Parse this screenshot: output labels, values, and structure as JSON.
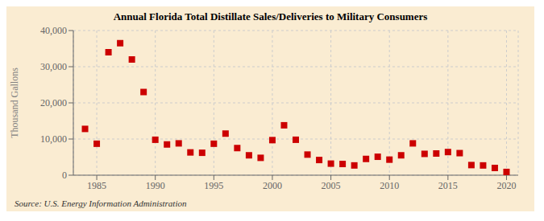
{
  "chart_data": {
    "type": "scatter",
    "title": "Annual Florida Total Distillate Sales/Deliveries to Military Consumers",
    "ylabel": "Thousand Gallons",
    "annotation": "Source: U.S. Energy Information Administration",
    "x": [
      1984,
      1985,
      1986,
      1987,
      1988,
      1989,
      1990,
      1991,
      1992,
      1993,
      1994,
      1995,
      1996,
      1997,
      1998,
      1999,
      2000,
      2001,
      2002,
      2003,
      2004,
      2005,
      2006,
      2007,
      2008,
      2009,
      2010,
      2011,
      2012,
      2013,
      2014,
      2015,
      2016,
      2017,
      2018,
      2019,
      2020
    ],
    "values": [
      12800,
      8700,
      34000,
      36500,
      32000,
      23000,
      9800,
      8500,
      8800,
      6300,
      6200,
      8700,
      11500,
      7500,
      5500,
      4800,
      9700,
      13800,
      9800,
      5700,
      4200,
      3200,
      3100,
      2700,
      4500,
      5100,
      4300,
      5500,
      8800,
      5900,
      6000,
      6400,
      6100,
      2800,
      2700,
      2000,
      900
    ],
    "color": "#cc0000",
    "marker": "square",
    "xlim": [
      1983,
      2021
    ],
    "ylim": [
      0,
      40000
    ],
    "xticks": [
      1985,
      1990,
      1995,
      2000,
      2005,
      2010,
      2015,
      2020
    ],
    "yticks": [
      0,
      {
        "value": 10000,
        "label": "10,000"
      },
      {
        "value": 20000,
        "label": "20,000"
      },
      {
        "value": 30000,
        "label": "30,000"
      },
      {
        "value": 40000,
        "label": "40,000"
      }
    ],
    "grid": true
  }
}
